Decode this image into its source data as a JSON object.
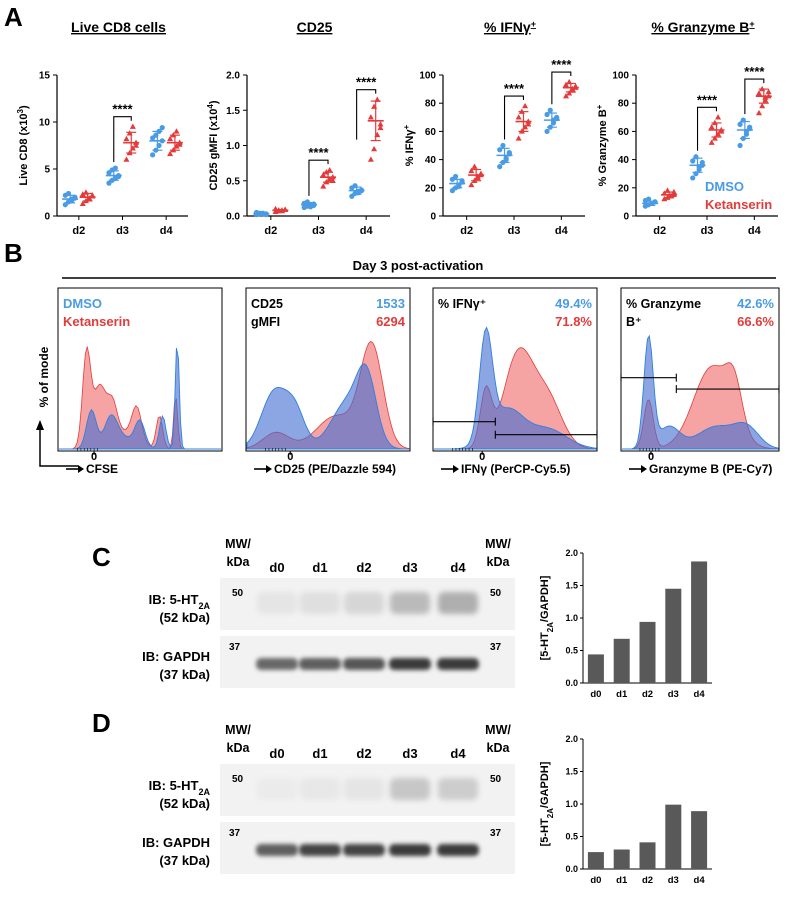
{
  "colors": {
    "dmso": "#4a9be6",
    "ketanserin": "#e33b3b",
    "overlap": "#6e6bbd",
    "bar": "#595959",
    "blot_bg": "#f2f2f2",
    "band": "#3a3a3a"
  },
  "panels": {
    "A": "A",
    "B": "B",
    "C": "C",
    "D": "D"
  },
  "legend": {
    "dmso": "DMSO",
    "ketanserin": "Ketanserin"
  },
  "sig": "****",
  "chart_data": [
    {
      "id": "live-cd8",
      "type": "scatter",
      "title": "Live CD8 cells",
      "ylabel": "Live CD8 (x10³)",
      "ylabel_base": "Live CD8 (x10",
      "ylabel_sup": "3",
      "ylabel_tail": ")",
      "categories": [
        "d2",
        "d3",
        "d4"
      ],
      "yticks": [
        "0",
        "5",
        "10",
        "15"
      ],
      "ylim": [
        0,
        15
      ],
      "series": [
        {
          "name": "DMSO",
          "points": [
            [
              1.2,
              1.5,
              1.8,
              2.0,
              2.2,
              2.4,
              1.6,
              1.9
            ],
            [
              3.5,
              3.8,
              4.0,
              4.3,
              4.6,
              4.9,
              5.1,
              4.2
            ],
            [
              6.5,
              7.0,
              7.5,
              8.0,
              8.3,
              8.6,
              9.0,
              9.4
            ]
          ],
          "mean": [
            1.8,
            4.3,
            8.0
          ],
          "sd": [
            0.4,
            0.5,
            1.0
          ]
        },
        {
          "name": "Ketanserin",
          "points": [
            [
              1.3,
              1.6,
              1.9,
              2.1,
              2.3,
              2.5,
              1.8,
              2.2
            ],
            [
              6.0,
              6.7,
              7.2,
              7.8,
              8.2,
              8.8,
              9.5,
              7.5
            ],
            [
              6.6,
              7.0,
              7.4,
              7.8,
              8.2,
              8.6,
              9.0,
              7.6
            ]
          ],
          "mean": [
            2.0,
            7.8,
            7.8
          ],
          "sd": [
            0.4,
            1.1,
            0.8
          ]
        }
      ],
      "sig": [
        {
          "cat": 1,
          "label": "****"
        }
      ]
    },
    {
      "id": "cd25",
      "type": "scatter",
      "title": "CD25",
      "ylabel": "CD25 gMFI (x10⁴)",
      "ylabel_base": "CD25 gMFI (x10",
      "ylabel_sup": "4",
      "ylabel_tail": ")",
      "categories": [
        "d2",
        "d3",
        "d4"
      ],
      "yticks": [
        "0.0",
        "0.5",
        "1.0",
        "1.5",
        "2.0"
      ],
      "ylim": [
        0,
        2.0
      ],
      "series": [
        {
          "name": "DMSO",
          "points": [
            [
              0.02,
              0.03,
              0.04,
              0.03,
              0.05,
              0.04,
              0.03,
              0.02
            ],
            [
              0.12,
              0.14,
              0.16,
              0.15,
              0.18,
              0.2,
              0.13,
              0.17
            ],
            [
              0.28,
              0.32,
              0.35,
              0.37,
              0.4,
              0.43,
              0.33,
              0.36
            ]
          ],
          "mean": [
            0.035,
            0.16,
            0.36
          ],
          "sd": [
            0.01,
            0.03,
            0.05
          ]
        },
        {
          "name": "Ketanserin",
          "points": [
            [
              0.06,
              0.07,
              0.08,
              0.09,
              0.1,
              0.08,
              0.07,
              0.09
            ],
            [
              0.42,
              0.48,
              0.52,
              0.55,
              0.58,
              0.62,
              0.65,
              0.5
            ],
            [
              0.8,
              0.95,
              1.15,
              1.3,
              1.4,
              1.55,
              1.65,
              1.25
            ]
          ],
          "mean": [
            0.08,
            0.55,
            1.35
          ],
          "sd": [
            0.01,
            0.07,
            0.28
          ]
        }
      ],
      "sig": [
        {
          "cat": 1,
          "label": "****"
        },
        {
          "cat": 2,
          "label": "****"
        }
      ]
    },
    {
      "id": "ifng",
      "type": "scatter",
      "title": "% IFNγ⁺",
      "title_base": "% IFNγ",
      "title_sup": "+",
      "ylabel": "% IFNγ⁺",
      "ylabel_base": "% IFNγ",
      "ylabel_sup": "+",
      "ylabel_tail": "",
      "categories": [
        "d2",
        "d3",
        "d4"
      ],
      "yticks": [
        "0",
        "20",
        "40",
        "60",
        "80",
        "100"
      ],
      "ylim": [
        0,
        100
      ],
      "series": [
        {
          "name": "DMSO",
          "points": [
            [
              18,
              20,
              22,
              24,
              26,
              28,
              21,
              25
            ],
            [
              35,
              38,
              41,
              44,
              47,
              50,
              40,
              45
            ],
            [
              60,
              63,
              66,
              69,
              72,
              75,
              68,
              70
            ]
          ],
          "mean": [
            23,
            43,
            68
          ],
          "sd": [
            3,
            5,
            5
          ]
        },
        {
          "name": "Ketanserin",
          "points": [
            [
              22,
              25,
              28,
              30,
              32,
              35,
              27,
              29
            ],
            [
              55,
              60,
              63,
              67,
              70,
              74,
              78,
              65
            ],
            [
              85,
              87,
              89,
              91,
              93,
              95,
              90,
              92
            ]
          ],
          "mean": [
            29,
            67,
            91
          ],
          "sd": [
            4,
            7,
            3
          ]
        }
      ],
      "sig": [
        {
          "cat": 1,
          "label": "****"
        },
        {
          "cat": 2,
          "label": "****"
        }
      ]
    },
    {
      "id": "gzmb",
      "type": "scatter",
      "title": "% Granzyme B⁺",
      "title_base": "% Granzyme B",
      "title_sup": "+",
      "ylabel": "% Granzyme B⁺",
      "ylabel_base": "% Granzyme B",
      "ylabel_sup": "+",
      "ylabel_tail": "",
      "categories": [
        "d2",
        "d3",
        "d4"
      ],
      "yticks": [
        "0",
        "20",
        "40",
        "60",
        "80",
        "100"
      ],
      "ylim": [
        0,
        100
      ],
      "series": [
        {
          "name": "DMSO",
          "points": [
            [
              7,
              8,
              9,
              10,
              11,
              12,
              9,
              10
            ],
            [
              27,
              30,
              33,
              36,
              39,
              42,
              35,
              38
            ],
            [
              50,
              55,
              58,
              62,
              65,
              68,
              60,
              63
            ]
          ],
          "mean": [
            9,
            36,
            61
          ],
          "sd": [
            1.5,
            5,
            6
          ]
        },
        {
          "name": "Ketanserin",
          "points": [
            [
              12,
              13,
              14,
              15,
              16,
              18,
              14,
              17
            ],
            [
              52,
              55,
              58,
              60,
              63,
              66,
              70,
              61
            ],
            [
              73,
              78,
              82,
              85,
              87,
              90,
              84,
              88
            ]
          ],
          "mean": [
            15,
            61,
            85
          ],
          "sd": [
            2,
            5,
            5
          ]
        }
      ],
      "sig": [
        {
          "cat": 1,
          "label": "****"
        },
        {
          "cat": 2,
          "label": "****"
        }
      ],
      "legend": true
    }
  ],
  "flow": {
    "title": "Day 3 post-activation",
    "ylabel": "% of mode",
    "zero": "0",
    "panels": [
      {
        "xlabel": "CFSE",
        "label1": "DMSO",
        "label2": "Ketanserin"
      },
      {
        "xlabel": "CD25 (PE/Dazzle 594)",
        "label1": "CD25",
        "label2": "gMFI",
        "v1": "1533",
        "v2": "6294"
      },
      {
        "xlabel": "IFNγ (PerCP-Cy5.5)",
        "label1": "% IFNγ⁺",
        "v1": "49.4%",
        "v2": "71.8%"
      },
      {
        "xlabel": "Granzyme B (PE-Cy7)",
        "label1": "% Granzyme",
        "label2": "B⁺",
        "v1": "42.6%",
        "v2": "66.6%"
      }
    ]
  },
  "blots": [
    {
      "panel": "C",
      "mw_label": "MW/",
      "mw_label2": "kDa",
      "lanes": [
        "d0",
        "d1",
        "d2",
        "d3",
        "d4"
      ],
      "ib1": "IB: 5-HT",
      "ib1_sub": "2A",
      "ib1_kda": "(52 kDa)",
      "mw1": "50",
      "ib2": "IB: GAPDH",
      "ib2_kda": "(37 kDa)",
      "mw2": "37",
      "bar_ylabel": "[5-HT2A/GAPDH]",
      "bar_ylabel_pre": "[5-HT",
      "bar_ylabel_sub": "2A",
      "bar_ylabel_post": "/GAPDH]",
      "bar_yticks": [
        "0.0",
        "0.5",
        "1.0",
        "1.5",
        "2.0"
      ],
      "bar_values": [
        0.44,
        0.68,
        0.94,
        1.45,
        1.87
      ],
      "band1": [
        0.1,
        0.15,
        0.22,
        0.45,
        0.55
      ],
      "band2": [
        0.75,
        0.8,
        0.85,
        1.0,
        1.0
      ]
    },
    {
      "panel": "D",
      "mw_label": "MW/",
      "mw_label2": "kDa",
      "lanes": [
        "d0",
        "d1",
        "d2",
        "d3",
        "d4"
      ],
      "ib1": "IB: 5-HT",
      "ib1_sub": "2A",
      "ib1_kda": "(52 kDa)",
      "mw1": "50",
      "ib2": "IB: GAPDH",
      "ib2_kda": "(37 kDa)",
      "mw2": "37",
      "bar_ylabel": "[5-HT2A/GAPDH]",
      "bar_ylabel_pre": "[5-HT",
      "bar_ylabel_sub": "2A",
      "bar_ylabel_post": "/GAPDH]",
      "bar_yticks": [
        "0.0",
        "0.5",
        "1.0",
        "1.5",
        "2.0"
      ],
      "bar_values": [
        0.26,
        0.3,
        0.41,
        0.99,
        0.89
      ],
      "band1": [
        0.05,
        0.08,
        0.1,
        0.35,
        0.3
      ],
      "band2": [
        0.8,
        0.95,
        0.95,
        1.0,
        1.0
      ]
    }
  ]
}
